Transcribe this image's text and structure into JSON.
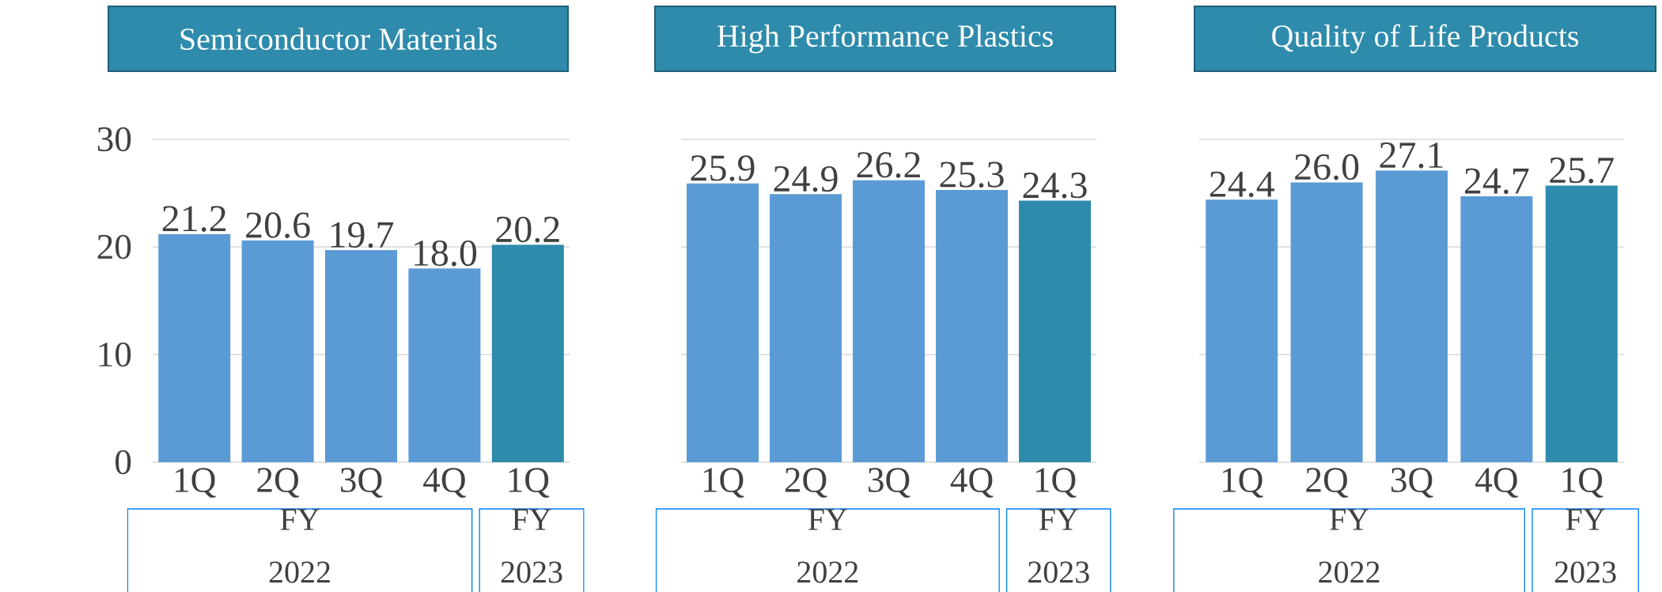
{
  "chart_data": [
    {
      "type": "bar",
      "title": "Semiconductor Materials",
      "categories": [
        "1Q",
        "2Q",
        "3Q",
        "4Q",
        "1Q"
      ],
      "values": [
        21.2,
        20.6,
        19.7,
        18.0,
        20.2
      ],
      "value_labels": [
        "21.2",
        "20.6",
        "19.7",
        "18.0",
        "20.2"
      ],
      "colors": [
        "#5b9bd5",
        "#5b9bd5",
        "#5b9bd5",
        "#5b9bd5",
        "#2e8bab"
      ],
      "ylim": [
        0,
        30
      ],
      "yticks": [
        0,
        10,
        20,
        30
      ],
      "grid": "y",
      "annotations": [
        "FY 2022",
        "FY 2023"
      ]
    },
    {
      "type": "bar",
      "title": "High Performance Plastics",
      "categories": [
        "1Q",
        "2Q",
        "3Q",
        "4Q",
        "1Q"
      ],
      "values": [
        25.9,
        24.9,
        26.2,
        25.3,
        24.3
      ],
      "value_labels": [
        "25.9",
        "24.9",
        "26.2",
        "25.3",
        "24.3"
      ],
      "colors": [
        "#5b9bd5",
        "#5b9bd5",
        "#5b9bd5",
        "#5b9bd5",
        "#2e8bab"
      ],
      "ylim": [
        0,
        30
      ],
      "yticks": [
        0,
        10,
        20,
        30
      ],
      "grid": "y",
      "tick_labels": "x",
      "annotations": [
        "FY 2022",
        "FY 2023"
      ]
    },
    {
      "type": "bar",
      "title": "Quality of Life Products",
      "categories": [
        "1Q",
        "2Q",
        "3Q",
        "4Q",
        "1Q"
      ],
      "values": [
        24.4,
        26.0,
        27.1,
        24.7,
        25.7
      ],
      "value_labels": [
        "24.4",
        "26.0",
        "27.1",
        "24.7",
        "25.7"
      ],
      "colors": [
        "#5b9bd5",
        "#5b9bd5",
        "#5b9bd5",
        "#5b9bd5",
        "#2e8bab"
      ],
      "ylim": [
        0,
        30
      ],
      "yticks": [
        0,
        10,
        20,
        30
      ],
      "grid": "y",
      "tick_labels": "x",
      "annotations": [
        "FY 2022",
        "FY 2023"
      ]
    }
  ]
}
